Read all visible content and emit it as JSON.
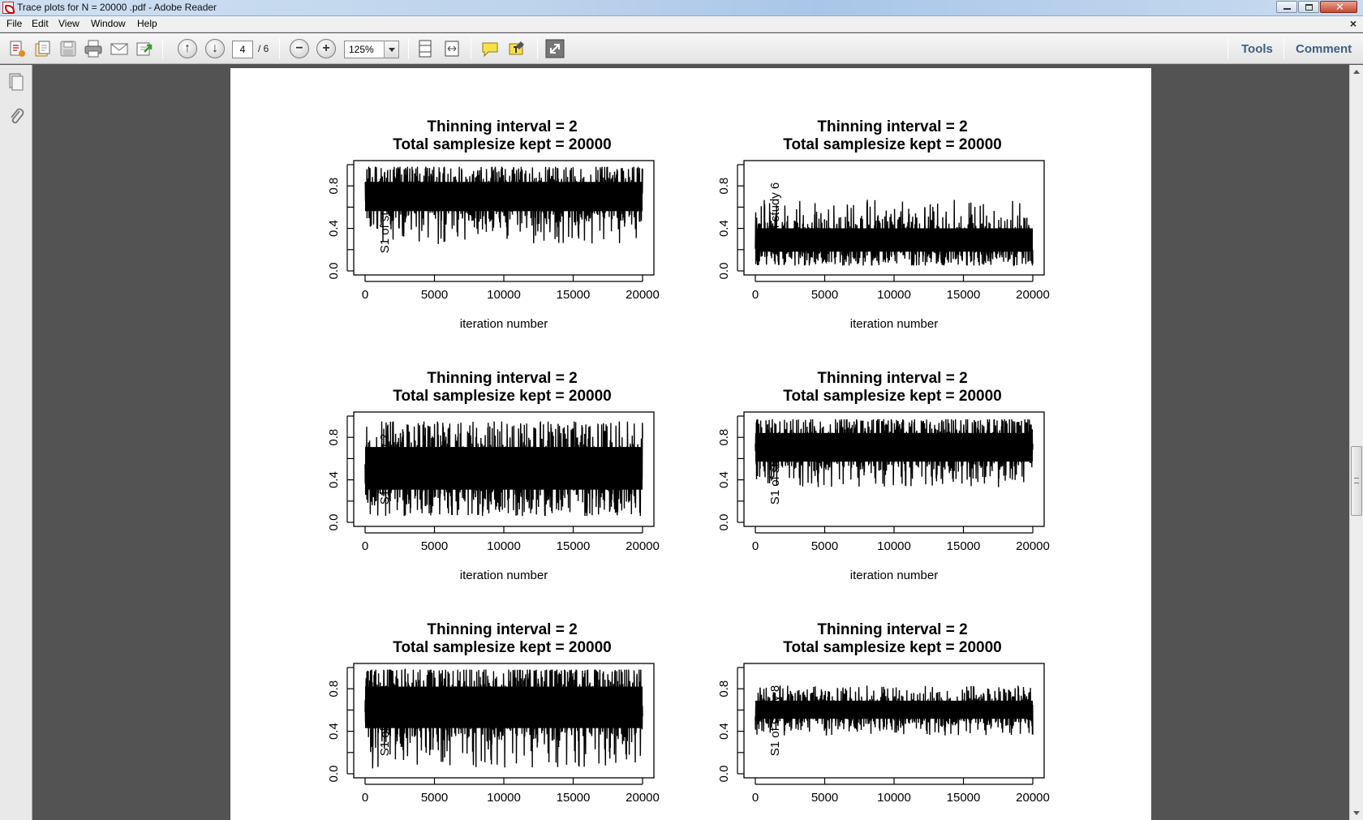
{
  "window": {
    "title": "Trace plots for N = 20000 .pdf - Adobe Reader"
  },
  "menu": {
    "items": [
      "File",
      "Edit",
      "View",
      "Window",
      "Help"
    ],
    "close_glyph": "×"
  },
  "toolbar": {
    "current_page": "4",
    "page_total": "/ 6",
    "zoom": "125%",
    "tools_label": "Tools",
    "comment_label": "Comment",
    "icons": [
      "create-pdf-icon",
      "open-icon",
      "save-icon",
      "print-icon",
      "email-icon",
      "share-icon",
      "previous-page-icon",
      "next-page-icon",
      "zoom-out-icon",
      "zoom-in-icon",
      "fit-page-icon",
      "fit-width-icon",
      "sticky-note-icon",
      "highlight-icon",
      "full-screen-icon"
    ]
  },
  "left_panel": {
    "icons": [
      "page-thumbnails-icon",
      "attachments-icon"
    ]
  },
  "document": {
    "plots": [
      {
        "title_line1": "Thinning interval =  2",
        "title_line2": "Total samplesize kept =  20000",
        "ylabel": "S1  of study  1",
        "xlabel": "iteration number"
      },
      {
        "title_line1": "Thinning interval =  2",
        "title_line2": "Total samplesize kept =  20000",
        "ylabel": "S1  of study  6",
        "xlabel": "iteration number"
      },
      {
        "title_line1": "Thinning interval =  2",
        "title_line2": "Total samplesize kept =  20000",
        "ylabel": "S1  of study  2",
        "xlabel": "iteration number"
      },
      {
        "title_line1": "Thinning interval =  2",
        "title_line2": "Total samplesize kept =  20000",
        "ylabel": "S1  of study  7",
        "xlabel": "iteration number"
      },
      {
        "title_line1": "Thinning interval =  2",
        "title_line2": "Total samplesize kept =  20000",
        "ylabel": "S1  of study  3",
        "xlabel": ""
      },
      {
        "title_line1": "Thinning interval =  2",
        "title_line2": "Total samplesize kept =  20000",
        "ylabel": "S1  of study  8",
        "xlabel": ""
      }
    ]
  },
  "chart_data": [
    {
      "type": "line",
      "x": [
        0,
        20000
      ],
      "x_ticks": [
        "0",
        "5000",
        "10000",
        "15000",
        "20000"
      ],
      "y_ticks": [
        "0.0",
        "0.4",
        "0.8"
      ],
      "xlim": [
        0,
        20000
      ],
      "ylim": [
        0,
        1
      ],
      "series": [
        {
          "mean": 0.7,
          "lower": 0.45,
          "upper": 0.95,
          "min": 0.25,
          "max": 0.98
        }
      ]
    },
    {
      "type": "line",
      "x": [
        0,
        20000
      ],
      "x_ticks": [
        "0",
        "5000",
        "10000",
        "15000",
        "20000"
      ],
      "y_ticks": [
        "0.0",
        "0.4",
        "0.8"
      ],
      "xlim": [
        0,
        20000
      ],
      "ylim": [
        0,
        1
      ],
      "series": [
        {
          "mean": 0.28,
          "lower": 0.1,
          "upper": 0.5,
          "min": 0.05,
          "max": 0.67
        }
      ]
    },
    {
      "type": "line",
      "x": [
        0,
        20000
      ],
      "x_ticks": [
        "0",
        "5000",
        "10000",
        "15000",
        "20000"
      ],
      "y_ticks": [
        "0.0",
        "0.4",
        "0.8"
      ],
      "xlim": [
        0,
        20000
      ],
      "ylim": [
        0,
        1
      ],
      "series": [
        {
          "mean": 0.5,
          "lower": 0.15,
          "upper": 0.88,
          "min": 0.06,
          "max": 0.95
        }
      ]
    },
    {
      "type": "line",
      "x": [
        0,
        20000
      ],
      "x_ticks": [
        "0",
        "5000",
        "10000",
        "15000",
        "20000"
      ],
      "y_ticks": [
        "0.0",
        "0.4",
        "0.8"
      ],
      "xlim": [
        0,
        20000
      ],
      "ylim": [
        0,
        1
      ],
      "series": [
        {
          "mean": 0.72,
          "lower": 0.45,
          "upper": 0.94,
          "min": 0.33,
          "max": 0.97
        }
      ]
    },
    {
      "type": "line",
      "x": [
        0,
        20000
      ],
      "x_ticks": [
        "0",
        "5000",
        "10000",
        "15000",
        "20000"
      ],
      "y_ticks": [
        "0.0",
        "0.4",
        "0.8"
      ],
      "xlim": [
        0,
        20000
      ],
      "ylim": [
        0,
        1
      ],
      "series": [
        {
          "mean": 0.65,
          "lower": 0.25,
          "upper": 0.96,
          "min": 0.05,
          "max": 0.98
        }
      ]
    },
    {
      "type": "line",
      "x": [
        0,
        20000
      ],
      "x_ticks": [
        "0",
        "5000",
        "10000",
        "15000",
        "20000"
      ],
      "y_ticks": [
        "0.0",
        "0.4",
        "0.8"
      ],
      "xlim": [
        0,
        20000
      ],
      "ylim": [
        0,
        1
      ],
      "series": [
        {
          "mean": 0.6,
          "lower": 0.45,
          "upper": 0.76,
          "min": 0.36,
          "max": 0.83
        }
      ]
    }
  ]
}
